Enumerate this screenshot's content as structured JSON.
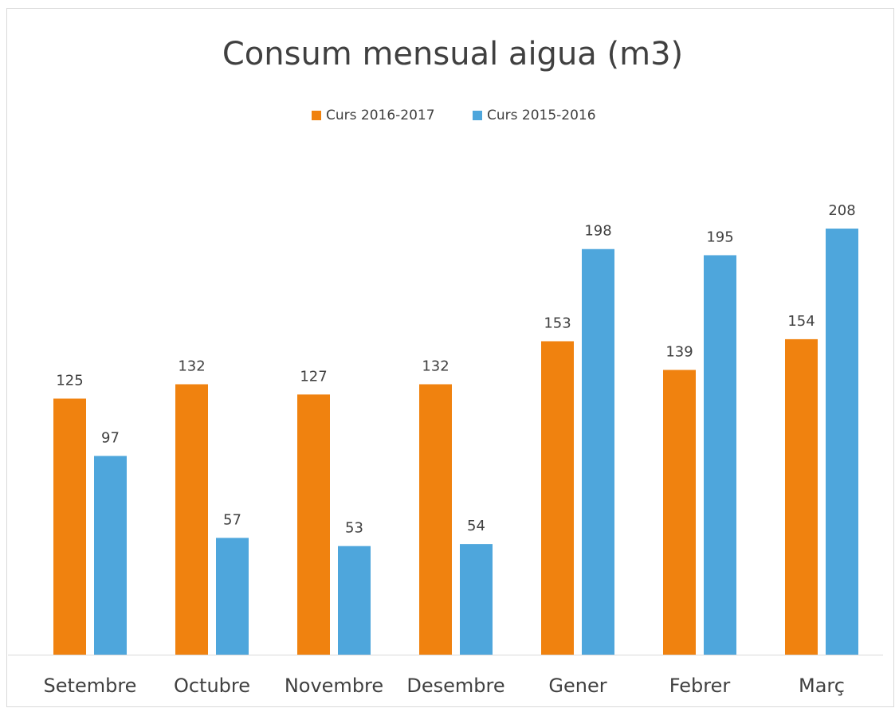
{
  "chart_data": {
    "type": "bar",
    "title": "Consum mensual aigua (m3)",
    "categories": [
      "Setembre",
      "Octubre",
      "Novembre",
      "Desembre",
      "Gener",
      "Febrer",
      "Març"
    ],
    "series": [
      {
        "name": "Curs 2016-2017",
        "color": "#f0820f",
        "values": [
          125,
          132,
          127,
          132,
          153,
          139,
          154
        ]
      },
      {
        "name": "Curs 2015-2016",
        "color": "#4ea6dc",
        "values": [
          97,
          57,
          53,
          54,
          198,
          195,
          208
        ]
      }
    ],
    "ylim": [
      0,
      250
    ],
    "grid": false,
    "legend": "top"
  }
}
